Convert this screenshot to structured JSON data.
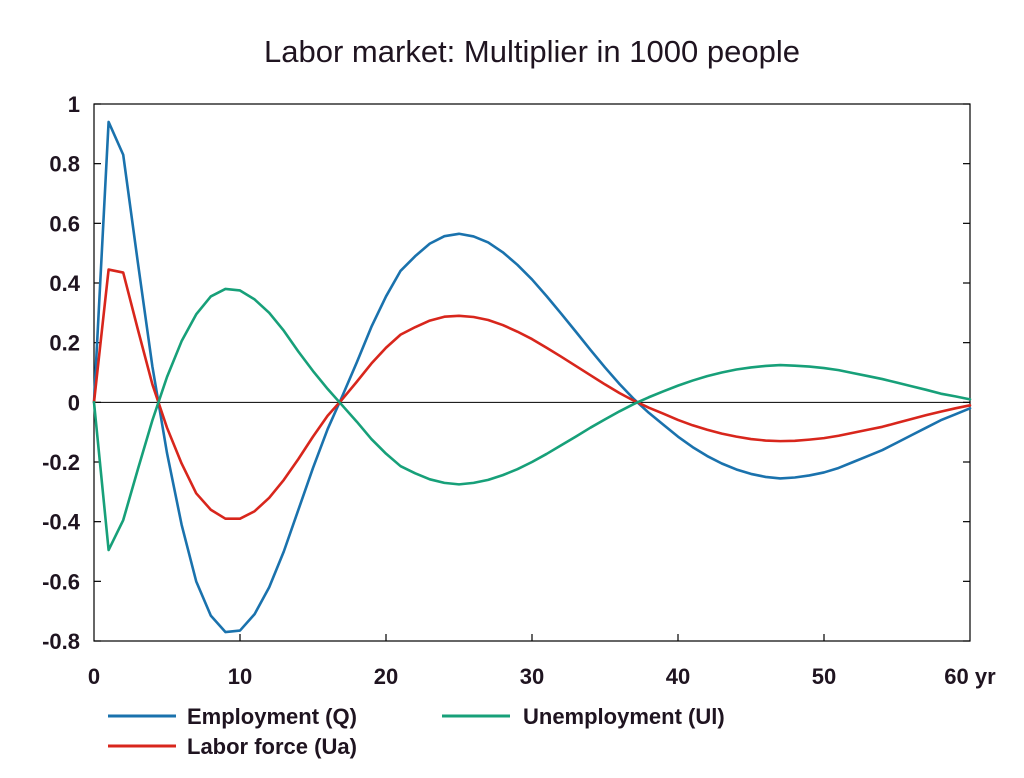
{
  "chart_data": {
    "type": "line",
    "title": "Labor market: Multiplier in 1000 people",
    "xlim": [
      0,
      60
    ],
    "ylim": [
      -0.8,
      1
    ],
    "grid": false,
    "legend_position": "bottom",
    "x_ticks": [
      0,
      10,
      20,
      30,
      40,
      50,
      60
    ],
    "x_tick_labels": [
      "0",
      "10",
      "20",
      "30",
      "40",
      "50",
      "60 yr"
    ],
    "y_ticks": [
      1,
      0.8,
      0.6,
      0.4,
      0.2,
      0,
      -0.2,
      -0.4,
      -0.6,
      -0.8
    ],
    "y_tick_labels": [
      "1",
      "0.8",
      "0.6",
      "0.4",
      "0.2",
      "0",
      "-0.2",
      "-0.4",
      "-0.6",
      "-0.8"
    ],
    "x": [
      0,
      1,
      2,
      3,
      4,
      5,
      6,
      7,
      8,
      9,
      10,
      11,
      12,
      13,
      14,
      15,
      16,
      17,
      18,
      19,
      20,
      21,
      22,
      23,
      24,
      25,
      26,
      27,
      28,
      29,
      30,
      31,
      32,
      33,
      34,
      35,
      36,
      37,
      38,
      39,
      40,
      41,
      42,
      43,
      44,
      45,
      46,
      47,
      48,
      49,
      50,
      51,
      52,
      53,
      54,
      55,
      56,
      57,
      58,
      59,
      60
    ],
    "series": [
      {
        "name": "Employment (Q)",
        "color": "#1a72ad",
        "values": [
          0,
          0.94,
          0.83,
          0.47,
          0.12,
          -0.17,
          -0.41,
          -0.6,
          -0.715,
          -0.77,
          -0.765,
          -0.71,
          -0.62,
          -0.5,
          -0.36,
          -0.22,
          -0.09,
          0.02,
          0.134,
          0.253,
          0.355,
          0.441,
          0.49,
          0.532,
          0.557,
          0.565,
          0.556,
          0.536,
          0.503,
          0.461,
          0.412,
          0.356,
          0.297,
          0.237,
          0.176,
          0.117,
          0.061,
          0.01,
          -0.035,
          -0.075,
          -0.115,
          -0.15,
          -0.18,
          -0.205,
          -0.225,
          -0.24,
          -0.25,
          -0.255,
          -0.252,
          -0.245,
          -0.235,
          -0.22,
          -0.2,
          -0.18,
          -0.16,
          -0.135,
          -0.11,
          -0.085,
          -0.06,
          -0.04,
          -0.02
        ]
      },
      {
        "name": "Unemployment (Ul)",
        "color": "#17a079",
        "values": [
          0,
          -0.495,
          -0.395,
          -0.225,
          -0.06,
          0.085,
          0.205,
          0.295,
          0.355,
          0.38,
          0.375,
          0.345,
          0.3,
          0.24,
          0.17,
          0.105,
          0.045,
          -0.01,
          -0.065,
          -0.123,
          -0.172,
          -0.214,
          -0.238,
          -0.258,
          -0.27,
          -0.275,
          -0.27,
          -0.26,
          -0.244,
          -0.224,
          -0.2,
          -0.173,
          -0.144,
          -0.115,
          -0.085,
          -0.057,
          -0.03,
          -0.005,
          0.017,
          0.037,
          0.056,
          0.073,
          0.088,
          0.1,
          0.11,
          0.117,
          0.122,
          0.125,
          0.123,
          0.12,
          0.115,
          0.108,
          0.098,
          0.088,
          0.078,
          0.066,
          0.054,
          0.042,
          0.029,
          0.02,
          0.01
        ]
      },
      {
        "name": "Labor force (Ua)",
        "color": "#d8261c",
        "values": [
          0,
          0.445,
          0.435,
          0.245,
          0.06,
          -0.085,
          -0.205,
          -0.305,
          -0.36,
          -0.39,
          -0.39,
          -0.365,
          -0.32,
          -0.26,
          -0.19,
          -0.115,
          -0.045,
          0.01,
          0.069,
          0.13,
          0.183,
          0.227,
          0.252,
          0.274,
          0.287,
          0.29,
          0.286,
          0.276,
          0.259,
          0.237,
          0.212,
          0.183,
          0.153,
          0.122,
          0.091,
          0.06,
          0.031,
          0.005,
          -0.018,
          -0.038,
          -0.059,
          -0.077,
          -0.092,
          -0.105,
          -0.115,
          -0.123,
          -0.128,
          -0.13,
          -0.129,
          -0.125,
          -0.12,
          -0.112,
          -0.102,
          -0.092,
          -0.082,
          -0.069,
          -0.056,
          -0.043,
          -0.031,
          -0.02,
          -0.01
        ]
      }
    ]
  }
}
